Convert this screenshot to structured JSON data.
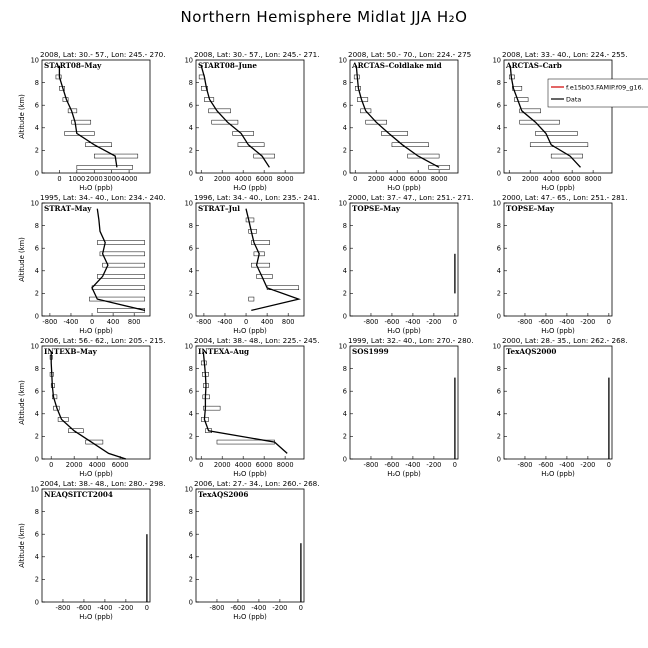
{
  "title": "Northern Hemisphere Midlat JJA H₂O",
  "chart_data": [
    {
      "header": "2008, Lat: 30.- 57., Lon: 245.- 270.",
      "name": "START08–May",
      "xlim": [
        -1000,
        5200
      ],
      "xticks": [
        0,
        1000,
        2000,
        3000,
        4000
      ],
      "line": [
        [
          0,
          9.5
        ],
        [
          0,
          8.5
        ],
        [
          200,
          7.5
        ],
        [
          400,
          6.5
        ],
        [
          700,
          5.5
        ],
        [
          900,
          4.5
        ],
        [
          1000,
          3.5
        ],
        [
          2000,
          2.5
        ],
        [
          3200,
          1.5
        ],
        [
          3300,
          0.5
        ]
      ],
      "boxes": [
        [
          -200,
          100,
          8.5
        ],
        [
          0,
          300,
          7.5
        ],
        [
          200,
          500,
          6.5
        ],
        [
          500,
          1000,
          5.5
        ],
        [
          700,
          1800,
          4.5
        ],
        [
          300,
          2000,
          3.5
        ],
        [
          1500,
          3000,
          2.5
        ],
        [
          2000,
          4500,
          1.5
        ],
        [
          1000,
          4200,
          0.5
        ]
      ]
    },
    {
      "header": "2008, Lat: 30.- 57., Lon: 245.- 271.",
      "name": "START08–June",
      "xlim": [
        -500,
        9800
      ],
      "xticks": [
        0,
        2000,
        4000,
        6000,
        8000
      ],
      "line": [
        [
          0,
          9.5
        ],
        [
          300,
          8.5
        ],
        [
          500,
          7.5
        ],
        [
          800,
          6.5
        ],
        [
          1500,
          5.5
        ],
        [
          2500,
          4.5
        ],
        [
          3800,
          3.5
        ],
        [
          4500,
          2.5
        ],
        [
          5800,
          1.5
        ],
        [
          6500,
          0.5
        ]
      ],
      "boxes": [
        [
          -200,
          300,
          8.5
        ],
        [
          0,
          600,
          7.5
        ],
        [
          300,
          1200,
          6.5
        ],
        [
          700,
          2800,
          5.5
        ],
        [
          1000,
          3500,
          4.5
        ],
        [
          3000,
          5000,
          3.5
        ],
        [
          3500,
          6000,
          2.5
        ],
        [
          5000,
          7000,
          1.5
        ]
      ]
    },
    {
      "header": "2008, Lat: 50.- 70., Lon: 224.- 275",
      "name": "ARCTAS–Coldlake mid",
      "xlim": [
        -500,
        9800
      ],
      "xticks": [
        0,
        2000,
        4000,
        6000,
        8000
      ],
      "line": [
        [
          100,
          9.5
        ],
        [
          200,
          8.5
        ],
        [
          300,
          7.5
        ],
        [
          600,
          6.5
        ],
        [
          1000,
          5.5
        ],
        [
          2000,
          4.5
        ],
        [
          3200,
          3.5
        ],
        [
          4500,
          2.5
        ],
        [
          6000,
          1.5
        ],
        [
          8000,
          0.5
        ]
      ],
      "boxes": [
        [
          -100,
          400,
          8.5
        ],
        [
          0,
          500,
          7.5
        ],
        [
          200,
          1200,
          6.5
        ],
        [
          500,
          1500,
          5.5
        ],
        [
          1000,
          3000,
          4.5
        ],
        [
          2500,
          5000,
          3.5
        ],
        [
          3500,
          7000,
          2.5
        ],
        [
          5000,
          8000,
          1.5
        ],
        [
          7000,
          9000,
          0.5
        ]
      ]
    },
    {
      "header": "2008, Lat: 33.- 40., Lon: 224.- 255.",
      "name": "ARCTAS–Carb",
      "xlim": [
        -500,
        9800
      ],
      "xticks": [
        0,
        2000,
        4000,
        6000,
        8000
      ],
      "line": [
        [
          100,
          9.5
        ],
        [
          200,
          8.5
        ],
        [
          400,
          7.5
        ],
        [
          800,
          6.5
        ],
        [
          1200,
          5.5
        ],
        [
          2500,
          4.5
        ],
        [
          3500,
          3.5
        ],
        [
          4000,
          2.5
        ],
        [
          5800,
          1.5
        ],
        [
          6800,
          0.5
        ]
      ],
      "boxes": [
        [
          0,
          500,
          8.5
        ],
        [
          300,
          1200,
          7.5
        ],
        [
          500,
          1800,
          6.5
        ],
        [
          1000,
          3000,
          5.5
        ],
        [
          1000,
          4800,
          4.5
        ],
        [
          2500,
          6500,
          3.5
        ],
        [
          2000,
          7500,
          2.5
        ],
        [
          4000,
          7000,
          1.5
        ]
      ],
      "legend": {
        "model": "f.e15b03.FAMIP.f09_g16.",
        "data": "Data"
      }
    },
    {
      "header": "1995, Lat: 34.- 40., Lon: 234.- 240.",
      "name": "STRAT–May",
      "xlim": [
        -950,
        1100
      ],
      "xticks": [
        -800,
        -400,
        0,
        400,
        800
      ],
      "line": [
        [
          100,
          9.5
        ],
        [
          130,
          8.5
        ],
        [
          150,
          7.5
        ],
        [
          250,
          6.5
        ],
        [
          200,
          5.5
        ],
        [
          300,
          4.5
        ],
        [
          200,
          3.5
        ],
        [
          0,
          2.5
        ],
        [
          100,
          1.5
        ],
        [
          1000,
          0.5
        ]
      ],
      "boxes": [
        [
          100,
          1000,
          6.5
        ],
        [
          150,
          1000,
          5.5
        ],
        [
          200,
          1000,
          4.5
        ],
        [
          100,
          1000,
          3.5
        ],
        [
          0,
          1000,
          2.5
        ],
        [
          -50,
          1000,
          1.5
        ],
        [
          100,
          1000,
          0.5
        ]
      ]
    },
    {
      "header": "1996, Lat: 34.- 40., Lon: 235.- 241.",
      "name": "STRAT–Jul",
      "xlim": [
        -950,
        1100
      ],
      "xticks": [
        -800,
        -400,
        0,
        400,
        800
      ],
      "line": [
        [
          0,
          9.5
        ],
        [
          50,
          8.5
        ],
        [
          100,
          7.5
        ],
        [
          150,
          6.5
        ],
        [
          250,
          5.5
        ],
        [
          200,
          4.5
        ],
        [
          300,
          3.5
        ],
        [
          400,
          2.5
        ],
        [
          1000,
          1.5
        ],
        [
          100,
          0.5
        ]
      ],
      "boxes": [
        [
          0,
          150,
          8.5
        ],
        [
          50,
          200,
          7.5
        ],
        [
          100,
          450,
          6.5
        ],
        [
          150,
          350,
          5.5
        ],
        [
          100,
          450,
          4.5
        ],
        [
          200,
          500,
          3.5
        ],
        [
          400,
          1000,
          2.5
        ],
        [
          50,
          150,
          1.5
        ]
      ]
    },
    {
      "header": "2000, Lat: 37.- 47., Lon: 251.- 271.",
      "name": "TOPSE–May",
      "xlim": [
        -1000,
        30
      ],
      "xticks": [
        -800,
        -600,
        -400,
        -200,
        0
      ],
      "line": [
        [
          0,
          5.5
        ],
        [
          0,
          2.0
        ]
      ],
      "boxes": []
    },
    {
      "header": "2000, Lat: 47.- 65., Lon: 251.- 281.",
      "name": "TOPSE–May",
      "xlim": [
        -1000,
        30
      ],
      "xticks": [
        -800,
        -600,
        -400,
        -200,
        0
      ],
      "line": [],
      "boxes": []
    },
    {
      "header": "2006, Lat: 56.- 62., Lon: 205.- 215.",
      "name": "INTEXB–May",
      "xlim": [
        -800,
        8600
      ],
      "xticks": [
        0,
        2000,
        4000,
        6000
      ],
      "line": [
        [
          0,
          9.5
        ],
        [
          0,
          8.5
        ],
        [
          50,
          7.5
        ],
        [
          100,
          6.5
        ],
        [
          200,
          5.5
        ],
        [
          500,
          4.5
        ],
        [
          900,
          3.5
        ],
        [
          2000,
          2.5
        ],
        [
          3500,
          1.5
        ],
        [
          5000,
          0.5
        ],
        [
          6500,
          0.0
        ]
      ],
      "boxes": [
        [
          -100,
          100,
          9.0
        ],
        [
          -100,
          200,
          7.5
        ],
        [
          0,
          300,
          6.5
        ],
        [
          100,
          500,
          5.5
        ],
        [
          200,
          700,
          4.5
        ],
        [
          600,
          1500,
          3.5
        ],
        [
          1500,
          2800,
          2.5
        ],
        [
          3000,
          4500,
          1.5
        ]
      ]
    },
    {
      "header": "2004, Lat: 38.- 48., Lon: 225.- 245.",
      "name": "INTEXA–Aug",
      "xlim": [
        -500,
        9800
      ],
      "xticks": [
        0,
        2000,
        4000,
        6000,
        8000
      ],
      "line": [
        [
          200,
          9.5
        ],
        [
          300,
          8.5
        ],
        [
          400,
          7.5
        ],
        [
          450,
          6.5
        ],
        [
          400,
          5.5
        ],
        [
          400,
          4.5
        ],
        [
          300,
          3.5
        ],
        [
          700,
          2.5
        ],
        [
          7000,
          1.5
        ],
        [
          8200,
          0.5
        ]
      ],
      "boxes": [
        [
          0,
          500,
          8.5
        ],
        [
          100,
          700,
          7.5
        ],
        [
          200,
          700,
          6.5
        ],
        [
          150,
          800,
          5.5
        ],
        [
          200,
          1800,
          4.5
        ],
        [
          0,
          700,
          3.5
        ],
        [
          400,
          1000,
          2.5
        ],
        [
          1500,
          7000,
          1.5
        ]
      ]
    },
    {
      "header": "1999, Lat: 32.- 40., Lon: 270.- 280.",
      "name": "SOS1999",
      "xlim": [
        -1000,
        30
      ],
      "xticks": [
        -800,
        -600,
        -400,
        -200,
        0
      ],
      "line": [
        [
          0,
          7.2
        ],
        [
          0,
          0.0
        ]
      ],
      "boxes": []
    },
    {
      "header": "2000, Lat: 28.- 35., Lon: 262.- 268.",
      "name": "TexAQS2000",
      "xlim": [
        -1000,
        30
      ],
      "xticks": [
        -800,
        -600,
        -400,
        -200,
        0
      ],
      "line": [
        [
          0,
          7.2
        ],
        [
          0,
          0.0
        ]
      ],
      "boxes": []
    },
    {
      "header": "2004, Lat: 38.- 48., Lon: 280.- 298.",
      "name": "NEAQSITCT2004",
      "xlim": [
        -1000,
        30
      ],
      "xticks": [
        -800,
        -600,
        -400,
        -200,
        0
      ],
      "line": [
        [
          0,
          6.0
        ],
        [
          0,
          0.0
        ]
      ],
      "boxes": []
    },
    {
      "header": "2006, Lat: 27.- 34., Lon: 260.- 268.",
      "name": "TexAQS2006",
      "xlim": [
        -1000,
        30
      ],
      "xticks": [
        -800,
        -600,
        -400,
        -200,
        0
      ],
      "line": [
        [
          0,
          5.2
        ],
        [
          0,
          0.0
        ]
      ],
      "boxes": []
    }
  ],
  "axes": {
    "ylabel": "Altitude (km)",
    "xlabel": "H₂O (ppb)",
    "ylim": [
      0,
      10
    ],
    "yticks": [
      0,
      2,
      4,
      6,
      8,
      10
    ],
    "legend_color": "#d00000"
  }
}
